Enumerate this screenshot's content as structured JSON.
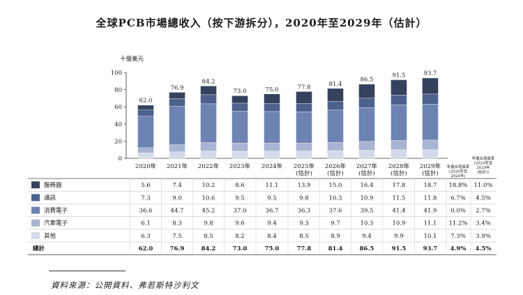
{
  "title": "全球PCB市場總收入（按下游拆分），2020年至2029年（估計）",
  "source": "資料來源：公開資料、弗若斯特沙利文",
  "colors": {
    "服務器": "#34425e",
    "通訊": "#4c628d",
    "消費電子": "#6d83b3",
    "汽車電子": "#a7b5d3",
    "其他": "#d3dae9"
  },
  "chart_data": {
    "type": "bar",
    "stacked": true,
    "unit_label": "十億美元",
    "ylim": [
      0,
      100
    ],
    "yticks": [
      0,
      20,
      40,
      60,
      80,
      100
    ],
    "categories": [
      "2020年",
      "2021年",
      "2022年",
      "2023年",
      "2024年",
      "2025年\n(估計)",
      "2026年\n(估計)",
      "2027年\n(估計)",
      "2028年\n(估計)",
      "2029年\n(估計)"
    ],
    "stack_order": [
      "其他",
      "汽車電子",
      "消費電子",
      "通訊",
      "服務器"
    ],
    "series": [
      {
        "name": "服務器",
        "values": [
          5.6,
          7.4,
          10.2,
          8.6,
          11.1,
          13.9,
          15.0,
          16.4,
          17.8,
          18.7
        ],
        "cagr_1": "18.8%",
        "cagr_2": "11.0%"
      },
      {
        "name": "通訊",
        "values": [
          7.3,
          9.0,
          10.6,
          9.5,
          9.5,
          9.8,
          10.3,
          10.9,
          11.5,
          11.8
        ],
        "cagr_1": "6.7%",
        "cagr_2": "4.5%"
      },
      {
        "name": "消費電子",
        "values": [
          36.6,
          44.7,
          45.2,
          37.0,
          36.7,
          36.3,
          37.6,
          39.5,
          41.4,
          41.9
        ],
        "cagr_1": "0.0%",
        "cagr_2": "2.7%"
      },
      {
        "name": "汽車電子",
        "values": [
          6.1,
          8.3,
          9.8,
          9.6,
          9.4,
          9.3,
          9.7,
          10.3,
          10.9,
          11.1
        ],
        "cagr_1": "11.2%",
        "cagr_2": "3.4%"
      },
      {
        "name": "其他",
        "values": [
          6.3,
          7.5,
          8.5,
          8.2,
          8.4,
          8.5,
          8.9,
          9.4,
          9.9,
          10.1
        ],
        "cagr_1": "7.3%",
        "cagr_2": "3.9%"
      }
    ],
    "totals": [
      62.0,
      76.9,
      84.2,
      73.0,
      75.0,
      77.8,
      81.4,
      86.5,
      91.5,
      93.7
    ],
    "total_label": "總計",
    "total_cagr_1": "4.9%",
    "total_cagr_2": "4.5%",
    "cagr_headers": [
      "年複合增長率\n(2020年至\n2024年)",
      "年複合增長率\n(2024年至\n2029年\n(估計))"
    ]
  }
}
